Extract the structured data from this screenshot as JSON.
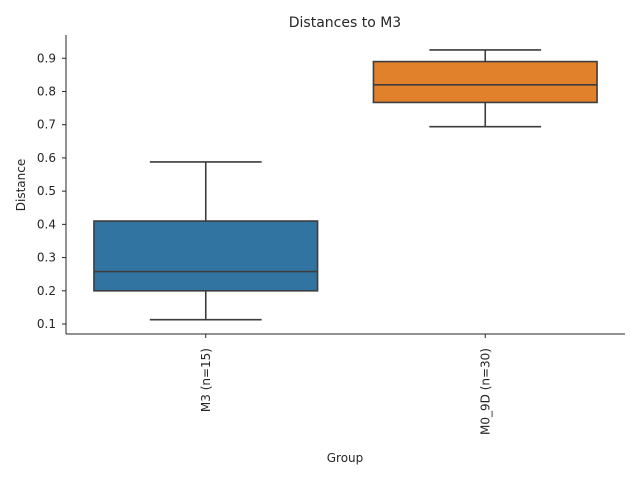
{
  "chart_data": {
    "type": "box",
    "title": "Distances to M3",
    "xlabel": "Group",
    "ylabel": "Distance",
    "ylim": [
      0.07,
      0.97
    ],
    "yticks": [
      "0.1",
      "0.2",
      "0.3",
      "0.4",
      "0.5",
      "0.6",
      "0.7",
      "0.8",
      "0.9"
    ],
    "grid": false,
    "categories": [
      "M3 (n=15)",
      "M0_9D (n=30)"
    ],
    "series": [
      {
        "category": "M3 (n=15)",
        "min": 0.113,
        "q1": 0.2,
        "median": 0.258,
        "q3": 0.41,
        "max": 0.588,
        "color": "#3274a1"
      },
      {
        "category": "M0_9D (n=30)",
        "min": 0.694,
        "q1": 0.767,
        "median": 0.82,
        "q3": 0.89,
        "max": 0.925,
        "color": "#e1812c"
      }
    ]
  }
}
